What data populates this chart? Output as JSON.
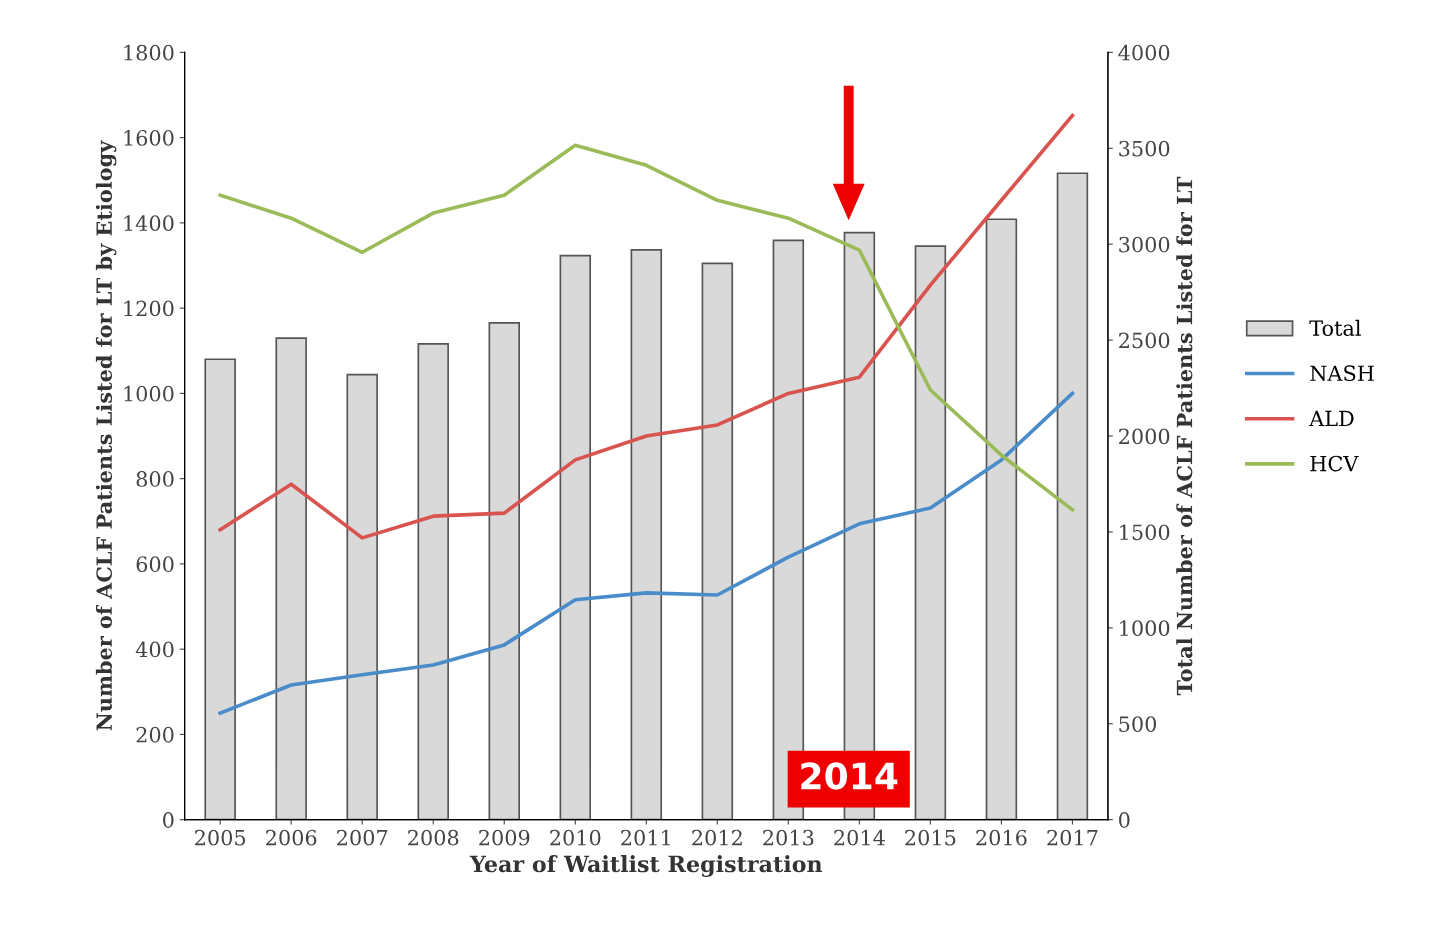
{
  "chart_data": {
    "type": "line",
    "xlabel": "Year of Waitlist Registration",
    "ylabel": "Number of ACLF Patients Listed for LT by Etiology",
    "y2label": "Total Number of ACLF Patients Listed for LT",
    "categories": [
      "2005",
      "2006",
      "2007",
      "2008",
      "2009",
      "2010",
      "2011",
      "2012",
      "2013",
      "2014",
      "2015",
      "2016",
      "2017"
    ],
    "series": [
      {
        "name": "Total",
        "type": "bar",
        "axis": "y2",
        "color": "#d9d9d9",
        "values": [
          2400,
          2510,
          2320,
          2480,
          2590,
          2940,
          2970,
          2900,
          3020,
          3060,
          2990,
          3130,
          3370
        ]
      },
      {
        "name": "NASH",
        "color": "#4a8cc9",
        "values": [
          250,
          316,
          340,
          363,
          410,
          516,
          532,
          527,
          616,
          694,
          731,
          844,
          1000
        ]
      },
      {
        "name": "ALD",
        "color": "#d9534f",
        "values": [
          680,
          787,
          661,
          712,
          719,
          844,
          900,
          926,
          1000,
          1038,
          1254,
          1453,
          1652
        ]
      },
      {
        "name": "HCV",
        "color": "#9bbb59",
        "values": [
          1465,
          1411,
          1331,
          1423,
          1465,
          1582,
          1535,
          1453,
          1411,
          1336,
          1008,
          855,
          727
        ]
      }
    ],
    "ylim": [
      0,
      1800
    ],
    "yticks": [
      0,
      200,
      400,
      600,
      800,
      1000,
      1200,
      1400,
      1600,
      1800
    ],
    "y2lim": [
      0,
      4000
    ],
    "y2ticks": [
      0,
      500,
      1000,
      1500,
      2000,
      2500,
      3000,
      3500,
      4000
    ],
    "annotations": [
      "2014"
    ],
    "legend": "right",
    "grid": false,
    "marker": "none",
    "line_style": "solid"
  }
}
